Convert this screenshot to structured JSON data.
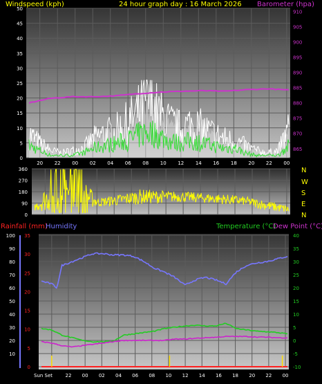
{
  "header": {
    "left": "Windspeed (kph)",
    "center": "24 hour graph day : 16 March 2026",
    "right": "Barometer (hpa)"
  },
  "compass_letters": [
    "N",
    "W",
    "S",
    "E",
    "N"
  ],
  "lower_header": {
    "rainfall": "Rainfall (mm)",
    "humidity": "Humidity",
    "temperature": "Temperature (°C)",
    "dewpoint": "Dew Point (°C)"
  },
  "sun_label": "Sun Set",
  "colors": {
    "windspeed": "#ffffff",
    "gust_fill": "#e8e8e8",
    "windavg": "#33dd33",
    "barometer": "#cc33cc",
    "direction": "#ffff00",
    "humidity": "#7777ff",
    "temperature": "#22cc22",
    "dewpoint": "#cc22cc",
    "rainfall": "#ff2222",
    "axis_text": "#ffffff"
  },
  "chart_data": [
    {
      "type": "line",
      "name_text": "windspeed",
      "x_tick_labels": [
        "20",
        "22",
        "00",
        "02",
        "04",
        "06",
        "08",
        "10",
        "12",
        "14",
        "16",
        "18",
        "20",
        "22",
        "00"
      ],
      "y_left_ticks": [
        0,
        5,
        10,
        15,
        20,
        25,
        30,
        35,
        40,
        45,
        50
      ],
      "y_right_ticks": [
        865,
        870,
        875,
        880,
        885,
        890,
        895,
        900,
        905,
        910
      ],
      "ylim_left": [
        0,
        50
      ],
      "ylim_right": [
        862,
        911
      ],
      "series": [
        {
          "values_hours": [
            0,
            1,
            2,
            3,
            4,
            5,
            6,
            7,
            8,
            9,
            10,
            11,
            12,
            13,
            14,
            15,
            16,
            17,
            18,
            19,
            20,
            21,
            22,
            23,
            24
          ],
          "gust_kph": [
            10,
            6,
            3,
            2,
            3,
            4,
            8,
            10,
            11,
            14,
            18,
            24,
            18,
            14,
            12,
            14,
            12,
            10,
            8,
            7,
            5,
            3,
            2,
            3,
            12
          ],
          "avg_kph": [
            5,
            3,
            1,
            1,
            1,
            2,
            4,
            5,
            6,
            7,
            9,
            11,
            9,
            7,
            6,
            7,
            6,
            5,
            4,
            4,
            2,
            1,
            1,
            1,
            5
          ]
        },
        {
          "values_hours": [
            0,
            2,
            4,
            6,
            8,
            10,
            12,
            14,
            16,
            18,
            20,
            22,
            24
          ],
          "barometer_hpa": [
            880.0,
            881.5,
            882.0,
            882.0,
            882.3,
            883.0,
            883.5,
            883.8,
            884.0,
            883.8,
            884.3,
            884.6,
            884.2
          ]
        }
      ]
    },
    {
      "type": "line",
      "name_text": "wind direction",
      "y_ticks": [
        0,
        90,
        180,
        270,
        360
      ],
      "ylim": [
        0,
        360
      ],
      "profile": [
        {
          "h": 0,
          "lo": 30,
          "hi": 80
        },
        {
          "h": 2,
          "lo": 20,
          "hi": 350
        },
        {
          "h": 4,
          "lo": 40,
          "hi": 340
        },
        {
          "h": 6,
          "lo": 60,
          "hi": 130
        },
        {
          "h": 8,
          "lo": 70,
          "hi": 160
        },
        {
          "h": 10,
          "lo": 80,
          "hi": 200
        },
        {
          "h": 12,
          "lo": 90,
          "hi": 190
        },
        {
          "h": 14,
          "lo": 100,
          "hi": 180
        },
        {
          "h": 16,
          "lo": 90,
          "hi": 170
        },
        {
          "h": 18,
          "lo": 80,
          "hi": 160
        },
        {
          "h": 20,
          "lo": 70,
          "hi": 140
        },
        {
          "h": 22,
          "lo": 30,
          "hi": 110
        },
        {
          "h": 24,
          "lo": 10,
          "hi": 70
        }
      ]
    },
    {
      "type": "line",
      "name_text": "temperature humidity dewpoint",
      "humidity_ticks": [
        10,
        20,
        30,
        40,
        50,
        60,
        70,
        80,
        90,
        100
      ],
      "rain_ticks": [
        0,
        5,
        10,
        15,
        20,
        25,
        30,
        35
      ],
      "temp_ticks": [
        -10,
        -5,
        0,
        5,
        10,
        15,
        20,
        25,
        30,
        35,
        40
      ],
      "ylim_humidity": [
        0,
        100
      ],
      "ylim_rain": [
        0,
        35
      ],
      "ylim_temp": [
        -10,
        40
      ],
      "series": [
        {
          "name": "Humidity",
          "hours": [
            0,
            1,
            1.5,
            2,
            3,
            4,
            5,
            6,
            7,
            8,
            9,
            10,
            11,
            12,
            13,
            14,
            15,
            16,
            17,
            18,
            19,
            20,
            21,
            22,
            23,
            24
          ],
          "values": [
            65,
            63,
            60,
            77,
            80,
            83,
            86,
            86,
            85,
            85,
            84,
            80,
            75,
            72,
            68,
            62,
            66,
            68,
            66,
            63,
            72,
            77,
            79,
            80,
            82,
            84
          ]
        },
        {
          "name": "Temperature",
          "hours": [
            0,
            1,
            2,
            3,
            4,
            5,
            6,
            7,
            8,
            9,
            10,
            11,
            12,
            13,
            14,
            15,
            16,
            17,
            18,
            19,
            20,
            21,
            22,
            23,
            24
          ],
          "values": [
            4.5,
            4.0,
            2.0,
            1.0,
            0,
            -0.5,
            -0.5,
            -0.3,
            2.0,
            2.5,
            3.0,
            3.5,
            4.5,
            5.0,
            5.5,
            5.8,
            5.5,
            5.5,
            6.5,
            4.5,
            4.0,
            3.5,
            3.3,
            3.0,
            2.5
          ]
        },
        {
          "name": "Dew Point",
          "hours": [
            0,
            1,
            2,
            3,
            4,
            5,
            6,
            7,
            8,
            9,
            10,
            11,
            12,
            13,
            14,
            15,
            16,
            17,
            18,
            19,
            20,
            21,
            22,
            23,
            24
          ],
          "values": [
            -0.5,
            -1.0,
            -2.0,
            -2.5,
            -2.0,
            -1.5,
            -1.0,
            -0.5,
            0,
            0,
            0,
            0,
            0,
            0.5,
            0.5,
            0.8,
            1.0,
            1.2,
            1.5,
            1.5,
            1.5,
            1.3,
            1.2,
            1.0,
            1.0
          ]
        },
        {
          "name": "Rainfall",
          "hours": [
            0,
            24
          ],
          "values": [
            0,
            0
          ]
        }
      ],
      "sun_markers_hours": [
        1.0,
        12.5,
        23.5
      ]
    }
  ]
}
